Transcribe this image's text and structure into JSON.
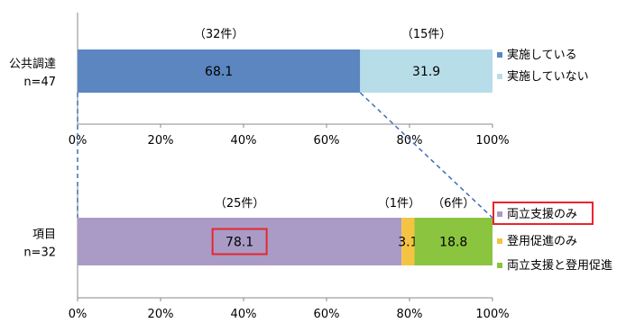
{
  "chart_data": [
    {
      "type": "bar",
      "orientation": "horizontal",
      "stacked": true,
      "category_label": [
        "公共調達",
        "n=47"
      ],
      "series": [
        {
          "name": "実施している",
          "value": 68.1,
          "count_label": "（32件）",
          "color": "#5b86bf"
        },
        {
          "name": "実施していない",
          "value": 31.9,
          "count_label": "（15件）",
          "color": "#b7dde8"
        }
      ],
      "xlim": [
        0,
        100
      ],
      "ticks": [
        "0%",
        "20%",
        "40%",
        "60%",
        "80%",
        "100%"
      ],
      "legend_position": "right"
    },
    {
      "type": "bar",
      "orientation": "horizontal",
      "stacked": true,
      "category_label": [
        "項目",
        "n=32"
      ],
      "series": [
        {
          "name": "両立支援のみ",
          "value": 78.1,
          "count_label": "（25件）",
          "color": "#a99bc6",
          "highlight": true
        },
        {
          "name": "登用促進のみ",
          "value": 3.1,
          "count_label": "（1件）",
          "color": "#f5c342"
        },
        {
          "name": "両立支援と登用促進",
          "value": 18.8,
          "count_label": "（6件）",
          "color": "#8bc43f"
        }
      ],
      "xlim": [
        0,
        100
      ],
      "ticks": [
        "0%",
        "20%",
        "40%",
        "60%",
        "80%",
        "100%"
      ],
      "legend_position": "right"
    }
  ],
  "colors": {
    "highlight_box": "#e8262d",
    "connector": "#3f6fb5",
    "axis": "#888888"
  }
}
